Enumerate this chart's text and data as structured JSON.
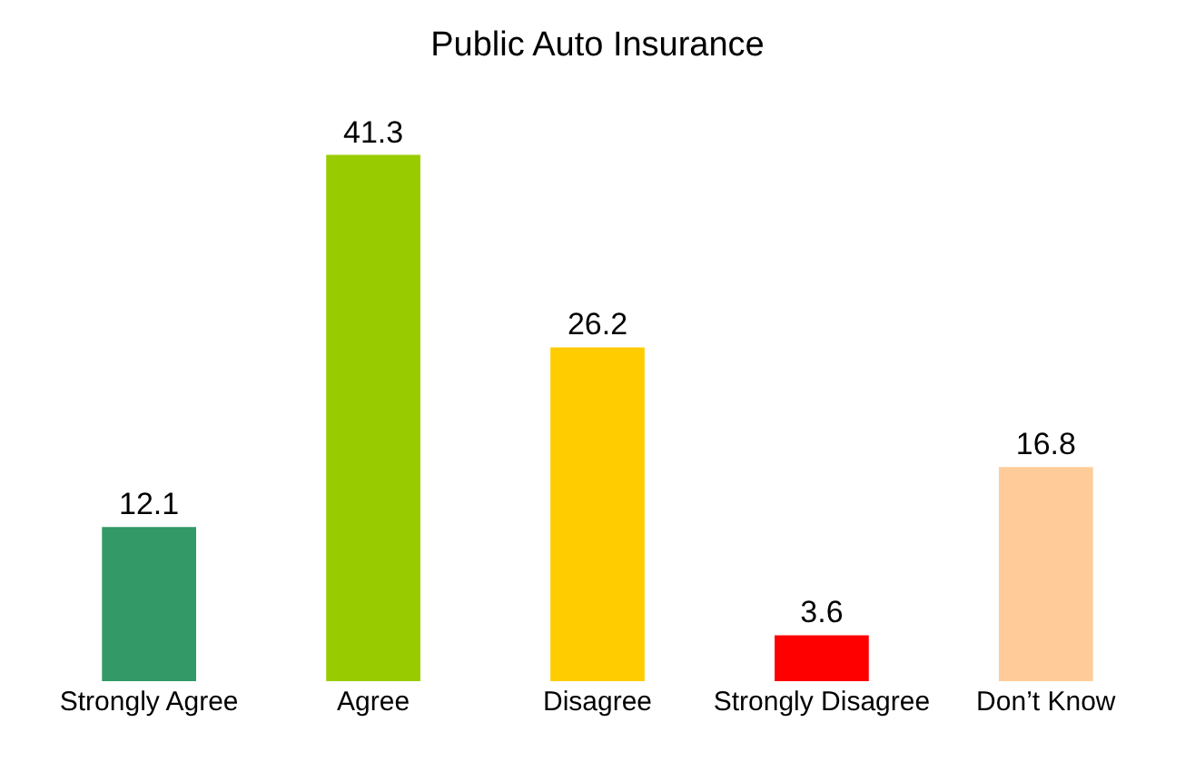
{
  "chart_data": {
    "type": "bar",
    "title": "Public Auto Insurance",
    "categories": [
      "Strongly Agree",
      "Agree",
      "Disagree",
      "Strongly Disagree",
      "Don’t Know"
    ],
    "values": [
      12.1,
      41.3,
      26.2,
      3.6,
      16.8
    ],
    "colors": [
      "#339966",
      "#99cc00",
      "#ffcc00",
      "#ff0000",
      "#ffcc99"
    ],
    "data_labels": true
  }
}
